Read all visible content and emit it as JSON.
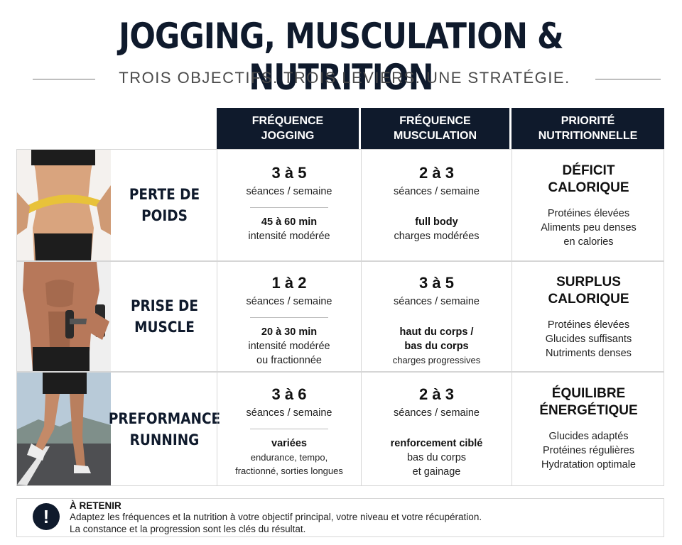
{
  "header": {
    "title": "JOGGING, MUSCULATION & NUTRITION",
    "subtitle": "TROIS OBJECTIFS. TROIS LEVIERS. UNE STRATÉGIE."
  },
  "columns": [
    {
      "line1": "FRÉQUENCE",
      "line2": "JOGGING"
    },
    {
      "line1": "FRÉQUENCE",
      "line2": "MUSCULATION"
    },
    {
      "line1": "PRIORITÉ",
      "line2": "NUTRITIONNELLE"
    }
  ],
  "rows": [
    {
      "title1": "PERTE DE",
      "title2": "POIDS",
      "jog": {
        "freq": "3 à 5",
        "unit": "séances / semaine",
        "d1": "45 à 60 min",
        "d2": "intensité modérée"
      },
      "musc": {
        "freq": "2 à 3",
        "unit": "séances / semaine",
        "d1": "full body",
        "d2": "charges modérées"
      },
      "nutri": {
        "p1": "DÉFICIT",
        "p2": "CALORIQUE",
        "l1": "Protéines élevées",
        "l2": "Aliments peu denses",
        "l3": "en calories"
      }
    },
    {
      "title1": "PRISE DE",
      "title2": "MUSCLE",
      "jog": {
        "freq": "1 à 2",
        "unit": "séances / semaine",
        "d1": "20 à 30 min",
        "d2": "intensité modérée",
        "d3": "ou fractionnée"
      },
      "musc": {
        "freq": "3 à 5",
        "unit": "séances / semaine",
        "d1": "haut du corps /",
        "d2": "bas du corps",
        "d3": "charges progressives"
      },
      "nutri": {
        "p1": "SURPLUS",
        "p2": "CALORIQUE",
        "l1": "Protéines élevées",
        "l2": "Glucides suffisants",
        "l3": "Nutriments denses"
      }
    },
    {
      "title1": "PREFORMANCE",
      "title2": "RUNNING",
      "jog": {
        "freq": "3 à 6",
        "unit": "séances / semaine",
        "d1": "variées",
        "d2": "endurance, tempo,",
        "d3": "fractionné, sorties longues"
      },
      "musc": {
        "freq": "2 à 3",
        "unit": "séances / semaine",
        "d1": "renforcement ciblé",
        "d2": "bas du corps",
        "d3": "et gainage"
      },
      "nutri": {
        "p1": "ÉQUILIBRE",
        "p2": "ÉNERGÉTIQUE",
        "l1": "Glucides adaptés",
        "l2": "Protéines régulières",
        "l3": "Hydratation optimale"
      }
    }
  ],
  "retain": {
    "icon": "!",
    "title": "À RETENIR",
    "line1": "Adaptez les fréquences et la nutrition à votre objectif principal, votre niveau et votre récupération.",
    "line2": "La constance et la progression sont les clés du résultat."
  }
}
